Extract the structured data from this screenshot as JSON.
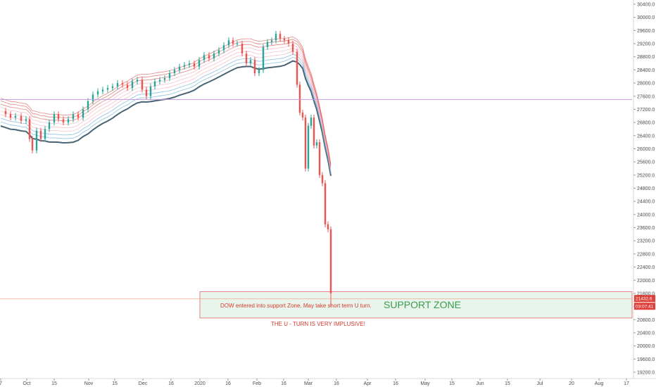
{
  "chart_data": {
    "type": "candlestick",
    "instrument": "DOW",
    "ylim": [
      19000,
      30500
    ],
    "y_ticks": [
      19200,
      19600,
      20000,
      20400,
      20800,
      21200,
      21600,
      22000,
      22400,
      22800,
      23200,
      23600,
      24000,
      24400,
      24800,
      25200,
      25600,
      26000,
      26400,
      26800,
      27200,
      27600,
      28000,
      28400,
      28800,
      29200,
      29600,
      30000,
      30400
    ],
    "y_tick_labels": [
      "19200.0",
      "19600.0",
      "20000.0",
      "20400.0",
      "20800.0",
      "21200.0",
      "21600.0",
      "22000.0",
      "22400.0",
      "22800.0",
      "23200.0",
      "23600.0",
      "24000.0",
      "24400.0",
      "24800.0",
      "25200.0",
      "25600.0",
      "26000.0",
      "26400.0",
      "26800.0",
      "27200.0",
      "27600.0",
      "28000.0",
      "28400.0",
      "28800.0",
      "29200.0",
      "29600.0",
      "30000.0",
      "30400.0"
    ],
    "x_ticks": [
      {
        "label": "7",
        "x": 1
      },
      {
        "label": "Oct",
        "x": 38
      },
      {
        "label": "15",
        "x": 77
      },
      {
        "label": "Nov",
        "x": 126
      },
      {
        "label": "15",
        "x": 163
      },
      {
        "label": "Dec",
        "x": 203
      },
      {
        "label": "16",
        "x": 243
      },
      {
        "label": "2020",
        "x": 284
      },
      {
        "label": "16",
        "x": 324
      },
      {
        "label": "Feb",
        "x": 365
      },
      {
        "label": "16",
        "x": 403
      },
      {
        "label": "Mar",
        "x": 438
      },
      {
        "label": "16",
        "x": 478
      },
      {
        "label": "Apr",
        "x": 522
      },
      {
        "label": "16",
        "x": 562
      },
      {
        "label": "May",
        "x": 604
      },
      {
        "label": "15",
        "x": 642
      },
      {
        "label": "Jun",
        "x": 682
      },
      {
        "label": "15",
        "x": 721
      },
      {
        "label": "Jul",
        "x": 767
      },
      {
        "label": "20",
        "x": 812
      },
      {
        "label": "Aug",
        "x": 851
      },
      {
        "label": "17",
        "x": 890
      }
    ],
    "series_close": [
      {
        "x": 1,
        "v": 27150
      },
      {
        "x": 8,
        "v": 27050
      },
      {
        "x": 15,
        "v": 26950
      },
      {
        "x": 22,
        "v": 27000
      },
      {
        "x": 30,
        "v": 26850
      },
      {
        "x": 37,
        "v": 26900
      },
      {
        "x": 42,
        "v": 26300
      },
      {
        "x": 46,
        "v": 25950
      },
      {
        "x": 52,
        "v": 26550
      },
      {
        "x": 58,
        "v": 26300
      },
      {
        "x": 64,
        "v": 26600
      },
      {
        "x": 70,
        "v": 26800
      },
      {
        "x": 77,
        "v": 27050
      },
      {
        "x": 83,
        "v": 26900
      },
      {
        "x": 90,
        "v": 26800
      },
      {
        "x": 97,
        "v": 26900
      },
      {
        "x": 104,
        "v": 27050
      },
      {
        "x": 111,
        "v": 26950
      },
      {
        "x": 118,
        "v": 27200
      },
      {
        "x": 125,
        "v": 27450
      },
      {
        "x": 132,
        "v": 27650
      },
      {
        "x": 139,
        "v": 27750
      },
      {
        "x": 146,
        "v": 27800
      },
      {
        "x": 153,
        "v": 27850
      },
      {
        "x": 160,
        "v": 27900
      },
      {
        "x": 167,
        "v": 28000
      },
      {
        "x": 174,
        "v": 27950
      },
      {
        "x": 181,
        "v": 27850
      },
      {
        "x": 188,
        "v": 28050
      },
      {
        "x": 195,
        "v": 28100
      },
      {
        "x": 202,
        "v": 27800
      },
      {
        "x": 208,
        "v": 27600
      },
      {
        "x": 214,
        "v": 27900
      },
      {
        "x": 220,
        "v": 28050
      },
      {
        "x": 227,
        "v": 28100
      },
      {
        "x": 234,
        "v": 28150
      },
      {
        "x": 241,
        "v": 28300
      },
      {
        "x": 248,
        "v": 28400
      },
      {
        "x": 255,
        "v": 28500
      },
      {
        "x": 262,
        "v": 28550
      },
      {
        "x": 269,
        "v": 28600
      },
      {
        "x": 276,
        "v": 28500
      },
      {
        "x": 283,
        "v": 28700
      },
      {
        "x": 290,
        "v": 28850
      },
      {
        "x": 297,
        "v": 28750
      },
      {
        "x": 304,
        "v": 28900
      },
      {
        "x": 311,
        "v": 29000
      },
      {
        "x": 318,
        "v": 29150
      },
      {
        "x": 325,
        "v": 29300
      },
      {
        "x": 331,
        "v": 29200
      },
      {
        "x": 337,
        "v": 29200
      },
      {
        "x": 344,
        "v": 28900
      },
      {
        "x": 350,
        "v": 28600
      },
      {
        "x": 356,
        "v": 28700
      },
      {
        "x": 362,
        "v": 28300
      },
      {
        "x": 368,
        "v": 28400
      },
      {
        "x": 374,
        "v": 29100
      },
      {
        "x": 380,
        "v": 29250
      },
      {
        "x": 386,
        "v": 29300
      },
      {
        "x": 392,
        "v": 29500
      },
      {
        "x": 398,
        "v": 29350
      },
      {
        "x": 404,
        "v": 29300
      },
      {
        "x": 410,
        "v": 29200
      },
      {
        "x": 416,
        "v": 28950
      },
      {
        "x": 422,
        "v": 27950
      },
      {
        "x": 426,
        "v": 27100
      },
      {
        "x": 430,
        "v": 26950
      },
      {
        "x": 434,
        "v": 25400
      },
      {
        "x": 438,
        "v": 26700
      },
      {
        "x": 442,
        "v": 26950
      },
      {
        "x": 446,
        "v": 26100
      },
      {
        "x": 450,
        "v": 26200
      },
      {
        "x": 454,
        "v": 25200
      },
      {
        "x": 458,
        "v": 24950
      },
      {
        "x": 462,
        "v": 23700
      },
      {
        "x": 466,
        "v": 23550
      },
      {
        "x": 470,
        "v": 21600
      }
    ],
    "ribbon_offsets_pts": [
      -1300,
      -1050,
      -850,
      -650,
      -450,
      -250,
      -80,
      80,
      200
    ],
    "horizontal_line_upper": 27500,
    "horizontal_line_price": 21432.6,
    "support_zone": {
      "top": 21650,
      "bottom": 20850
    },
    "price_tag": "21432.6",
    "time_tag": "03:07:41",
    "annotations": {
      "support_text": "DOW entered into support Zone. May take short term U turn.",
      "support_label": "SUPPORT ZONE",
      "uturn_text": "THE U - TURN IS VERY IMPLUSIVE!"
    },
    "colors": {
      "up": "#26a69a",
      "down": "#ef5350",
      "ma_dark": "#3e5b6b",
      "ma_blue": "#5aa7d6",
      "ma_pink": "#f1a6b6",
      "ma_red": "#d9534f",
      "hline_upper": "#c59ae0",
      "hline_price": "#f0a98f",
      "zone_fill": "#e9f5ec",
      "zone_border": "#e06666",
      "tag_red": "#e0403a"
    }
  }
}
